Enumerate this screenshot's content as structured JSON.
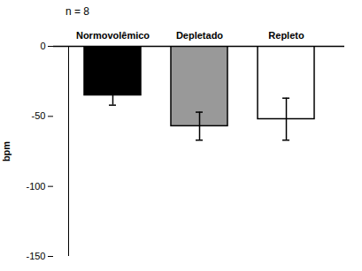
{
  "chart_data": {
    "type": "bar",
    "categories": [
      "Normovolêmico",
      "Depletado",
      "Repleto"
    ],
    "values": [
      -35,
      -57,
      -52
    ],
    "errors": [
      7,
      10,
      15
    ],
    "colors": [
      "#000000",
      "#999999",
      "#ffffff"
    ],
    "ylabel": "bpm",
    "annotation": "n = 8",
    "ylim": [
      -150,
      0
    ],
    "yticks": [
      0,
      -50,
      -100,
      -150
    ],
    "grid": false
  }
}
